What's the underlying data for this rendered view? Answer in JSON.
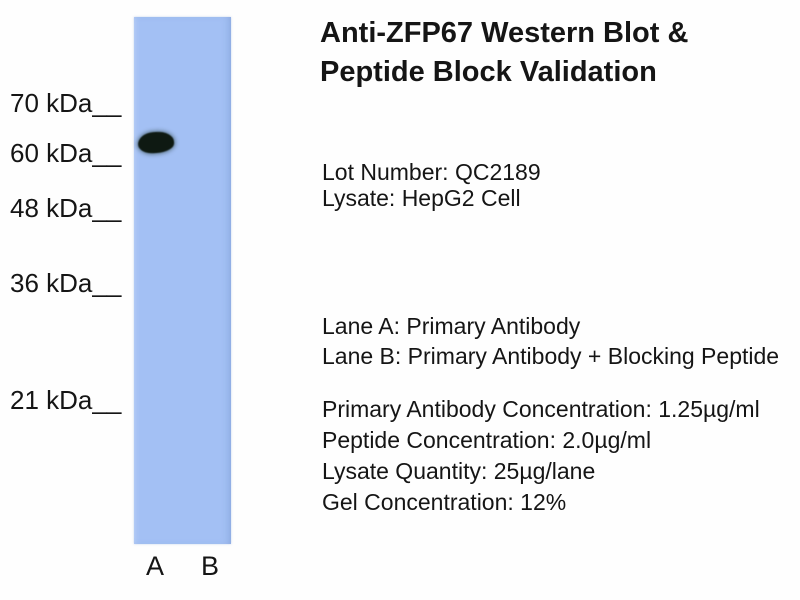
{
  "figure": {
    "title_line1": "Anti-ZFP67 Western Blot &",
    "title_line2": "Peptide Block Validation",
    "lot_number_line": "Lot Number: QC2189",
    "lysate_line": "Lysate: HepG2 Cell",
    "lane_a_line": "Lane A: Primary Antibody",
    "lane_b_line": "Lane B: Primary Antibody + Blocking Peptide",
    "primary_antibody_concentration_line": "Primary Antibody Concentration: 1.25µg/ml",
    "peptide_concentration_line": "Peptide Concentration: 2.0µg/ml",
    "lysate_quantity_line": "Lysate Quantity: 25µg/lane",
    "gel_concentration_line": "Gel Concentration: 12%"
  },
  "gel": {
    "markers": [
      {
        "label": "70 kDa__"
      },
      {
        "label": "60 kDa__"
      },
      {
        "label": "48 kDa__"
      },
      {
        "label": "36 kDa__"
      },
      {
        "label": "21 kDa__"
      }
    ],
    "lane_labels": [
      {
        "label": "A"
      },
      {
        "label": "B"
      }
    ]
  },
  "colors": {
    "background": "#fefefe",
    "gel_strip": "#a3c0f4",
    "band": "#0e1912",
    "text": "#151515"
  }
}
